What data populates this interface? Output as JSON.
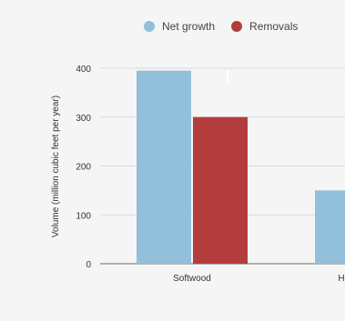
{
  "chart_data": {
    "type": "bar",
    "categories": [
      "Softwood",
      "H"
    ],
    "series": [
      {
        "name": "Net growth",
        "color": "#92c0da",
        "values": [
          395,
          150
        ]
      },
      {
        "name": "Removals",
        "color": "#b33d3d",
        "values": [
          300,
          null
        ]
      }
    ],
    "ylabel": "Volume (million cubic feet per year)",
    "ylim": [
      0,
      400
    ],
    "yticks": [
      0,
      100,
      200,
      300,
      400
    ],
    "grid": true,
    "legend": "top"
  }
}
